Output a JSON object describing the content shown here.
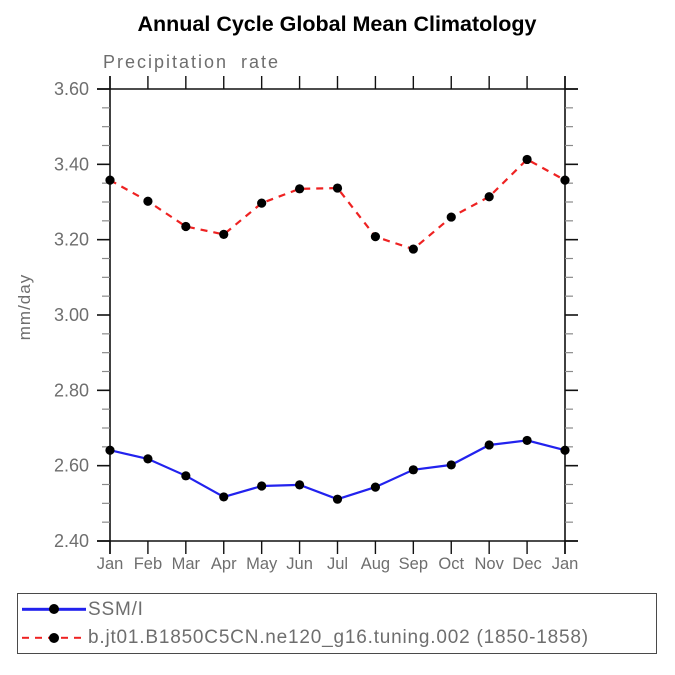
{
  "chart_data": {
    "type": "line",
    "title": "Annual Cycle Global Mean Climatology",
    "subtitle": "Precipitation rate",
    "ylabel": "mm/day",
    "categories": [
      "Jan",
      "Feb",
      "Mar",
      "Apr",
      "May",
      "Jun",
      "Jul",
      "Aug",
      "Sep",
      "Oct",
      "Nov",
      "Dec",
      "Jan"
    ],
    "ylim": [
      2.4,
      3.6
    ],
    "ytick_major_step": 0.2,
    "ytick_minor_step": 0.05,
    "grid": false,
    "legend_position": "bottom",
    "marker_color": "#000000",
    "axis_color": "#111111",
    "minor_tick_color": "#8a8a8a",
    "label_color": "#6e6e6e",
    "series": [
      {
        "name": "SSM/I",
        "color": "#2222ee",
        "line_style": "solid",
        "values": [
          2.641,
          2.618,
          2.573,
          2.517,
          2.546,
          2.549,
          2.511,
          2.543,
          2.589,
          2.602,
          2.655,
          2.667,
          2.641
        ]
      },
      {
        "name": "b.jt01.B1850C5CN.ne120_g16.tuning.002 (1850-1858)",
        "color": "#ee2222",
        "line_style": "dashed",
        "values": [
          3.358,
          3.302,
          3.235,
          3.214,
          3.297,
          3.335,
          3.337,
          3.208,
          3.175,
          3.26,
          3.314,
          3.413,
          3.358
        ]
      }
    ]
  }
}
